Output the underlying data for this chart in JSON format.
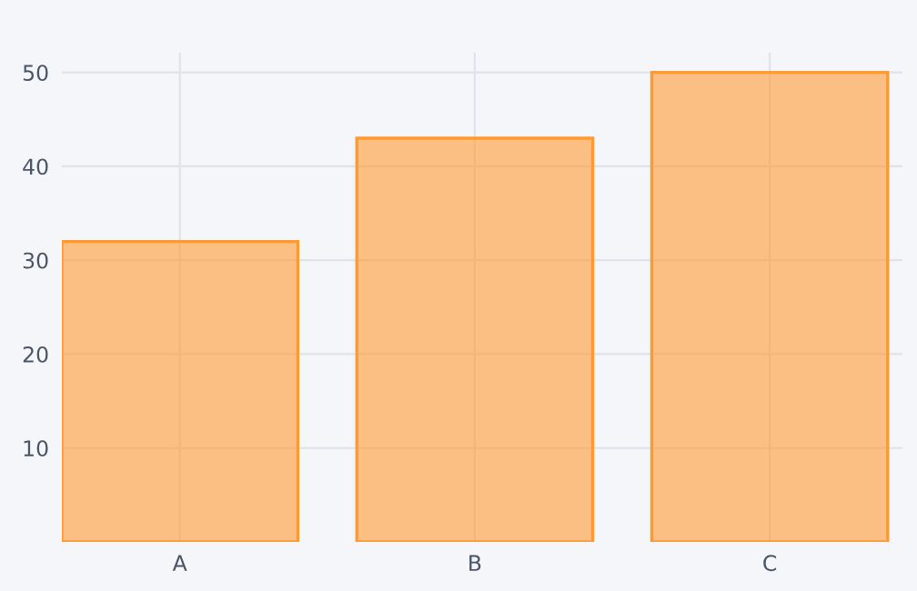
{
  "chart_data": {
    "type": "bar",
    "categories": [
      "A",
      "B",
      "C"
    ],
    "values": [
      32,
      43,
      50
    ],
    "color": "#ff9933",
    "ylim": [
      0,
      52.1
    ],
    "yticks": [
      10,
      20,
      30,
      40,
      50
    ],
    "grid": true
  }
}
